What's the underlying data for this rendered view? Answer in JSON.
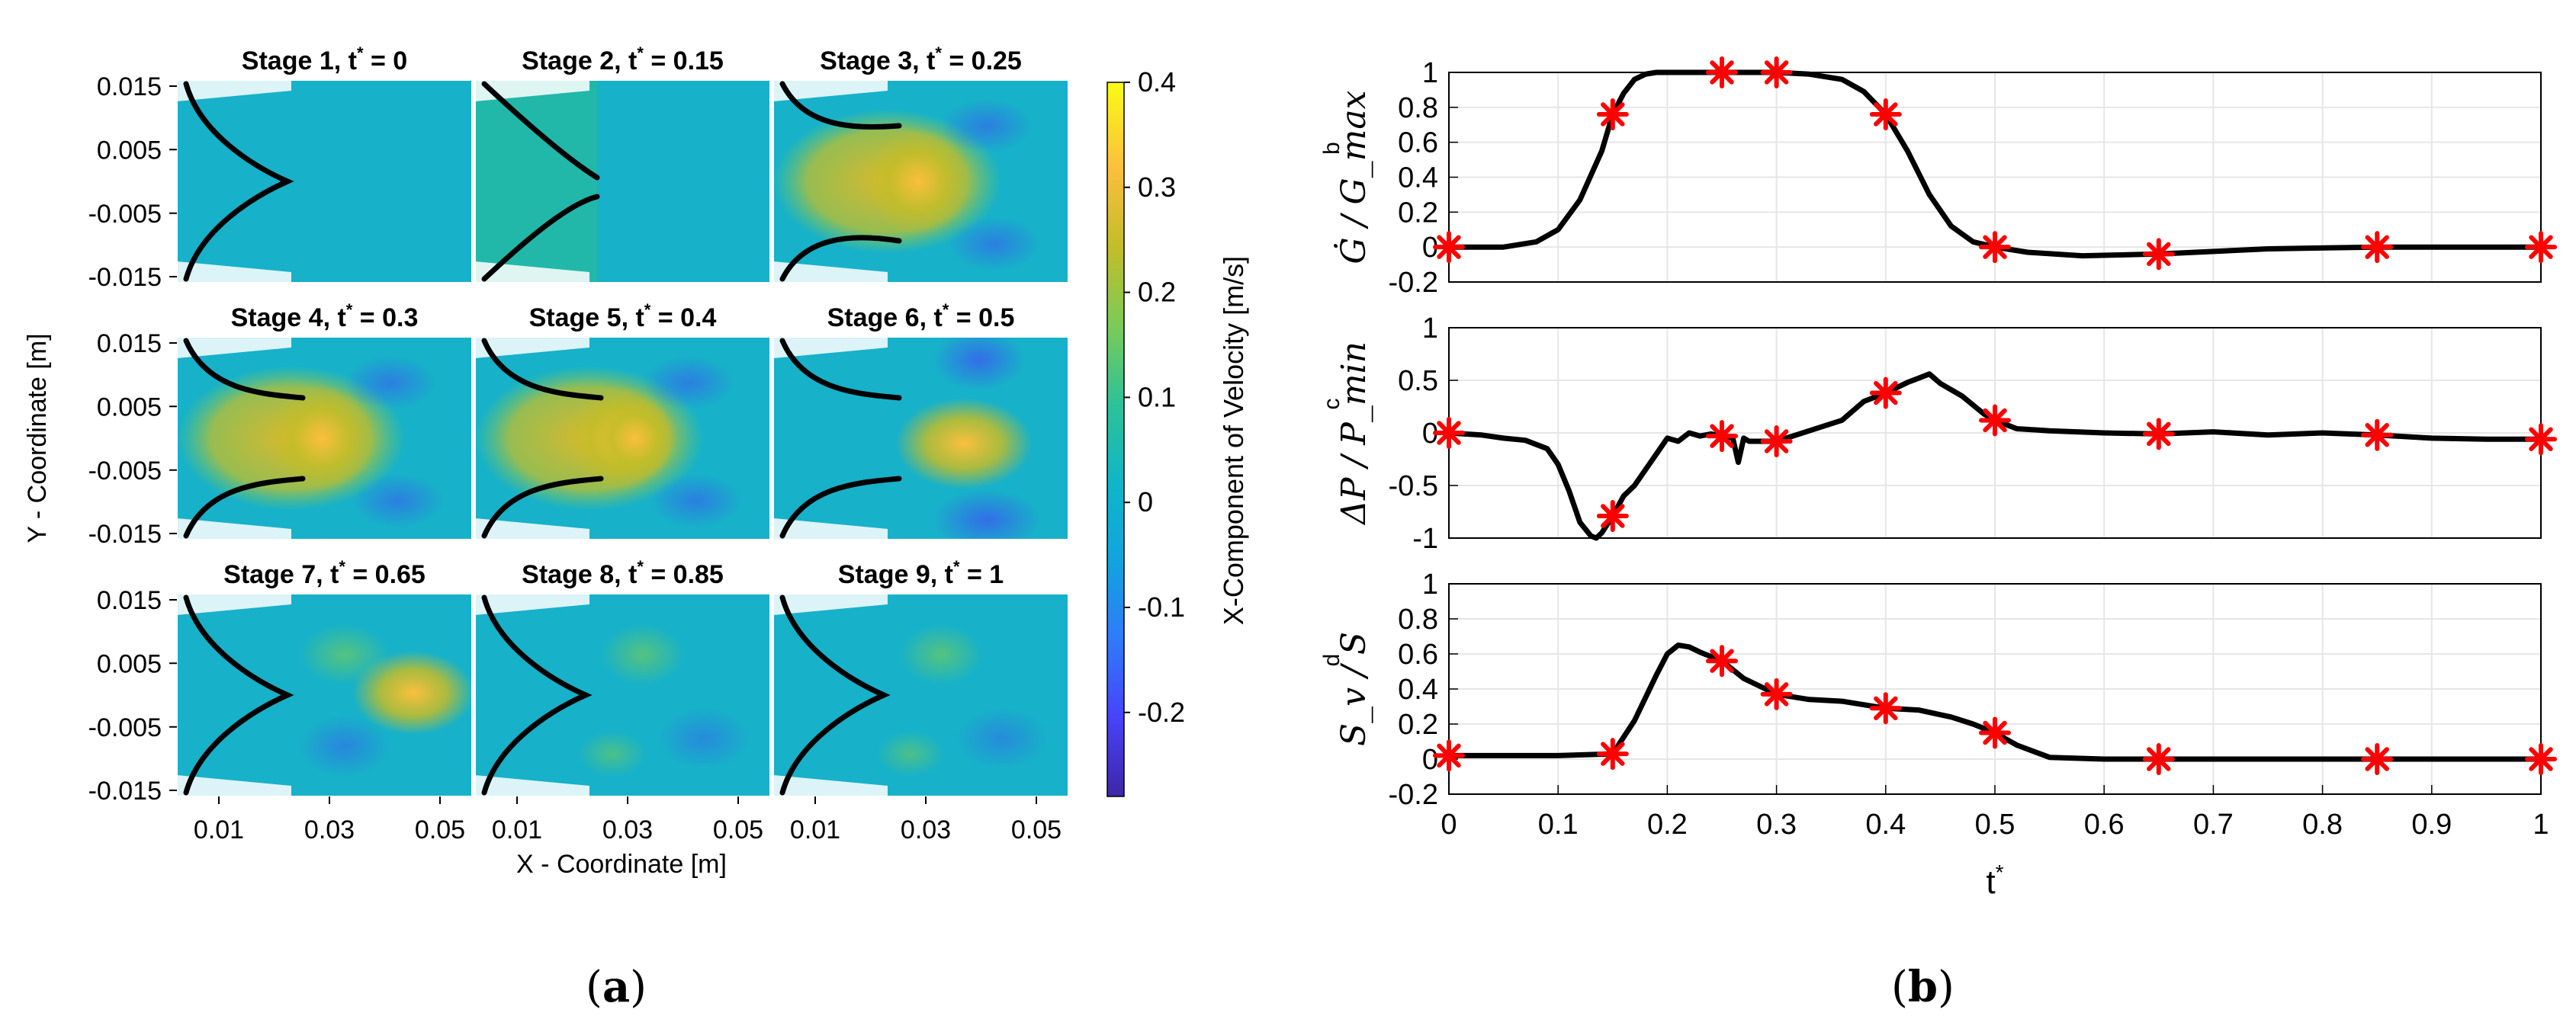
{
  "panel_a": {
    "panels": [
      {
        "title": "Stage 1, t",
        "sup": "*",
        "value": " = 0"
      },
      {
        "title": "Stage 2, t",
        "sup": "*",
        "value": " = 0.15"
      },
      {
        "title": "Stage 3, t",
        "sup": "*",
        "value": " = 0.25"
      },
      {
        "title": "Stage 4, t",
        "sup": "*",
        "value": " = 0.3"
      },
      {
        "title": "Stage 5, t",
        "sup": "*",
        "value": " = 0.4"
      },
      {
        "title": "Stage 6, t",
        "sup": "*",
        "value": " = 0.5"
      },
      {
        "title": "Stage 7, t",
        "sup": "*",
        "value": " = 0.65"
      },
      {
        "title": "Stage 8, t",
        "sup": "*",
        "value": " = 0.85"
      },
      {
        "title": "Stage 9, t",
        "sup": "*",
        "value": " = 1"
      }
    ],
    "xlabel": "X - Coordinate [m]",
    "ylabel": "Y - Coordinate [m]",
    "xticks": [
      "0.01",
      "0.03",
      "0.05"
    ],
    "yticks": [
      "0.015",
      "0.005",
      "-0.005",
      "-0.015"
    ],
    "colorbar": {
      "label": "X-Component of Velocity [m/s]",
      "ticks": [
        "0.4",
        "0.3",
        "0.2",
        "0.1",
        "0",
        "-0.1",
        "-0.2"
      ],
      "colors": [
        "#3e26a8",
        "#4743f9",
        "#2f7bf9",
        "#11a4e0",
        "#10b6c7",
        "#2dc297",
        "#7ccb56",
        "#c3bd28",
        "#fcbf3d",
        "#f9fb15"
      ]
    }
  },
  "panel_b": {
    "x_label": "t",
    "x_label_sup": "*",
    "xticks": [
      "0",
      "0.1",
      "0.2",
      "0.3",
      "0.4",
      "0.5",
      "0.6",
      "0.7",
      "0.8",
      "0.9",
      "1"
    ],
    "markers_t": [
      0,
      0.15,
      0.25,
      0.3,
      0.4,
      0.5,
      0.65,
      0.85,
      1
    ],
    "marker_color": "#ff0000",
    "subplots": [
      {
        "ylabel": "Ġ / G_max",
        "tag": "b",
        "yticks": [
          "1",
          "0.8",
          "0.6",
          "0.4",
          "0.2",
          "0",
          "-0.2"
        ]
      },
      {
        "ylabel": "ΔP / P_min",
        "tag": "c",
        "yticks": [
          "1",
          "0.5",
          "0",
          "-0.5",
          "-1"
        ]
      },
      {
        "ylabel": "S_v / S",
        "tag": "d",
        "yticks": [
          "1",
          "0.8",
          "0.6",
          "0.4",
          "0.2",
          "0",
          "-0.2"
        ]
      }
    ]
  },
  "captions": {
    "a": "a",
    "b": "b"
  },
  "chart_data": [
    {
      "type": "line",
      "title": "",
      "xlabel": "t*",
      "ylabel": "Ġ / G_max",
      "xlim": [
        0,
        1
      ],
      "ylim": [
        -0.2,
        1
      ],
      "grid": true,
      "series": [
        {
          "x": [
            0,
            0.05,
            0.08,
            0.1,
            0.12,
            0.14,
            0.15,
            0.16,
            0.17,
            0.18,
            0.19,
            0.2,
            0.25,
            0.3,
            0.33,
            0.36,
            0.38,
            0.4,
            0.42,
            0.44,
            0.46,
            0.48,
            0.5,
            0.53,
            0.58,
            0.65,
            0.75,
            0.85,
            0.9,
            1
          ],
          "y": [
            0,
            0.0,
            0.03,
            0.1,
            0.27,
            0.55,
            0.76,
            0.88,
            0.96,
            0.99,
            1.0,
            1.0,
            1.0,
            1.0,
            0.99,
            0.96,
            0.89,
            0.76,
            0.55,
            0.3,
            0.12,
            0.03,
            0,
            -0.03,
            -0.05,
            -0.04,
            -0.01,
            0,
            0,
            0
          ]
        }
      ],
      "markers": {
        "x": [
          0,
          0.15,
          0.25,
          0.3,
          0.4,
          0.5,
          0.65,
          0.85,
          1
        ],
        "y": [
          0,
          0.76,
          1,
          1,
          0.76,
          0,
          -0.04,
          0,
          0
        ]
      }
    },
    {
      "type": "line",
      "title": "",
      "xlabel": "t*",
      "ylabel": "ΔP / P_min",
      "xlim": [
        0,
        1
      ],
      "ylim": [
        -1,
        1
      ],
      "grid": true,
      "series": [
        {
          "x": [
            0,
            0.03,
            0.05,
            0.07,
            0.09,
            0.1,
            0.11,
            0.12,
            0.13,
            0.135,
            0.14,
            0.15,
            0.16,
            0.17,
            0.18,
            0.19,
            0.2,
            0.21,
            0.22,
            0.23,
            0.24,
            0.25,
            0.26,
            0.265,
            0.27,
            0.275,
            0.28,
            0.3,
            0.33,
            0.36,
            0.38,
            0.4,
            0.42,
            0.43,
            0.44,
            0.45,
            0.47,
            0.49,
            0.5,
            0.52,
            0.55,
            0.6,
            0.65,
            0.7,
            0.75,
            0.8,
            0.85,
            0.9,
            0.95,
            1
          ],
          "y": [
            0,
            -0.02,
            -0.05,
            -0.07,
            -0.15,
            -0.3,
            -0.55,
            -0.85,
            -0.98,
            -1.0,
            -0.95,
            -0.79,
            -0.6,
            -0.5,
            -0.35,
            -0.2,
            -0.05,
            -0.08,
            0.0,
            -0.03,
            -0.01,
            -0.03,
            -0.05,
            -0.28,
            -0.05,
            -0.08,
            -0.08,
            -0.08,
            0.02,
            0.12,
            0.3,
            0.38,
            0.48,
            0.52,
            0.56,
            0.47,
            0.35,
            0.18,
            0.12,
            0.04,
            0.02,
            0.0,
            -0.01,
            0.01,
            -0.02,
            0.0,
            -0.02,
            -0.05,
            -0.06,
            -0.06
          ]
        }
      ],
      "markers": {
        "x": [
          0,
          0.15,
          0.25,
          0.3,
          0.4,
          0.5,
          0.65,
          0.85,
          1
        ],
        "y": [
          0,
          -0.79,
          -0.03,
          -0.08,
          0.38,
          0.12,
          -0.01,
          -0.02,
          -0.06
        ]
      }
    },
    {
      "type": "line",
      "title": "",
      "xlabel": "t*",
      "ylabel": "S_v / S",
      "xlim": [
        0,
        1
      ],
      "ylim": [
        -0.2,
        1
      ],
      "grid": true,
      "series": [
        {
          "x": [
            0,
            0.1,
            0.15,
            0.17,
            0.19,
            0.2,
            0.21,
            0.22,
            0.23,
            0.25,
            0.27,
            0.3,
            0.33,
            0.36,
            0.4,
            0.43,
            0.46,
            0.48,
            0.5,
            0.52,
            0.55,
            0.6,
            0.7,
            0.8,
            0.9,
            1
          ],
          "y": [
            0.02,
            0.02,
            0.03,
            0.22,
            0.48,
            0.6,
            0.65,
            0.64,
            0.61,
            0.56,
            0.46,
            0.37,
            0.34,
            0.33,
            0.29,
            0.28,
            0.24,
            0.2,
            0.15,
            0.08,
            0.01,
            0,
            0,
            0,
            0,
            0
          ]
        }
      ],
      "markers": {
        "x": [
          0,
          0.15,
          0.25,
          0.3,
          0.4,
          0.5,
          0.65,
          0.85,
          1
        ],
        "y": [
          0.02,
          0.03,
          0.56,
          0.37,
          0.29,
          0.15,
          0,
          0,
          0
        ]
      }
    }
  ]
}
